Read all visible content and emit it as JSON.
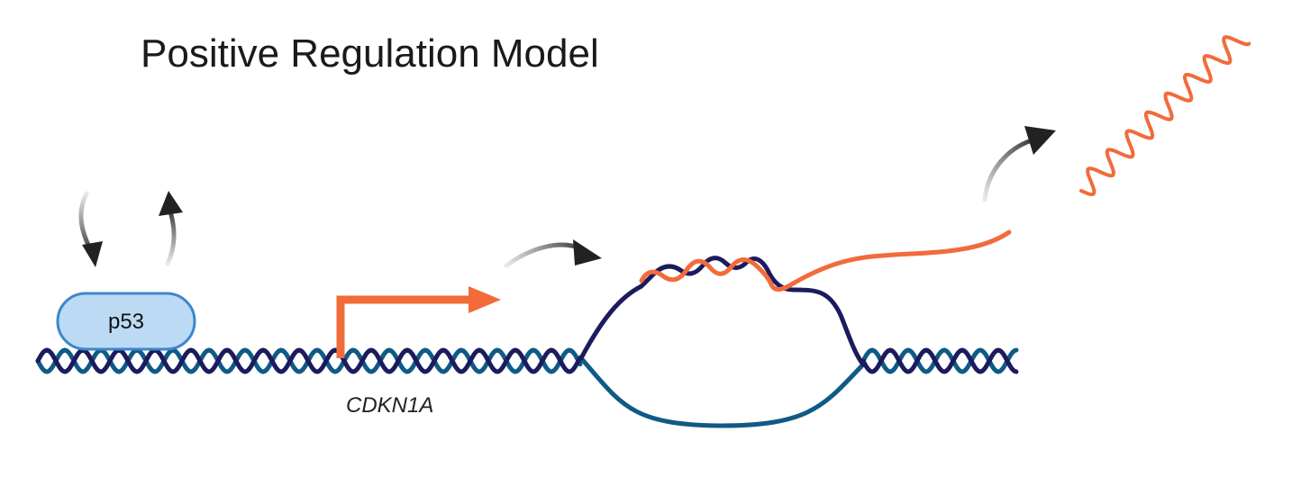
{
  "title": "Positive Regulation Model",
  "protein": {
    "label": "p53"
  },
  "gene": {
    "label": "CDKN1A"
  },
  "colors": {
    "strand_dark": "#1b1b5e",
    "strand_teal": "#0f5a86",
    "rna": "#f26b3a",
    "protein_fill": "#bcdaf3",
    "protein_stroke": "#3e86cc",
    "arrow": "#222222"
  }
}
